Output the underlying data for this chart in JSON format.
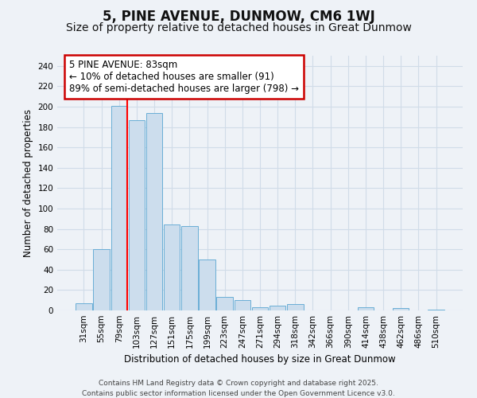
{
  "title": "5, PINE AVENUE, DUNMOW, CM6 1WJ",
  "subtitle": "Size of property relative to detached houses in Great Dunmow",
  "xlabel": "Distribution of detached houses by size in Great Dunmow",
  "ylabel": "Number of detached properties",
  "categories": [
    "31sqm",
    "55sqm",
    "79sqm",
    "103sqm",
    "127sqm",
    "151sqm",
    "175sqm",
    "199sqm",
    "223sqm",
    "247sqm",
    "271sqm",
    "294sqm",
    "318sqm",
    "342sqm",
    "366sqm",
    "390sqm",
    "414sqm",
    "438sqm",
    "462sqm",
    "486sqm",
    "510sqm"
  ],
  "values": [
    7,
    60,
    201,
    187,
    194,
    84,
    83,
    50,
    13,
    10,
    3,
    5,
    6,
    0,
    0,
    0,
    3,
    0,
    2,
    0,
    1
  ],
  "bar_color": "#ccdded",
  "bar_edge_color": "#6aaed6",
  "annotation_text": "5 PINE AVENUE: 83sqm\n← 10% of detached houses are smaller (91)\n89% of semi-detached houses are larger (798) →",
  "annotation_box_color": "#ffffff",
  "annotation_box_edge": "#cc0000",
  "ylim": [
    0,
    250
  ],
  "yticks": [
    0,
    20,
    40,
    60,
    80,
    100,
    120,
    140,
    160,
    180,
    200,
    220,
    240
  ],
  "footer1": "Contains HM Land Registry data © Crown copyright and database right 2025.",
  "footer2": "Contains public sector information licensed under the Open Government Licence v3.0.",
  "background_color": "#eef2f7",
  "grid_color": "#d0dce8",
  "title_fontsize": 12,
  "subtitle_fontsize": 10,
  "axis_label_fontsize": 8.5,
  "tick_fontsize": 7.5,
  "annotation_fontsize": 8.5,
  "footer_fontsize": 6.5
}
